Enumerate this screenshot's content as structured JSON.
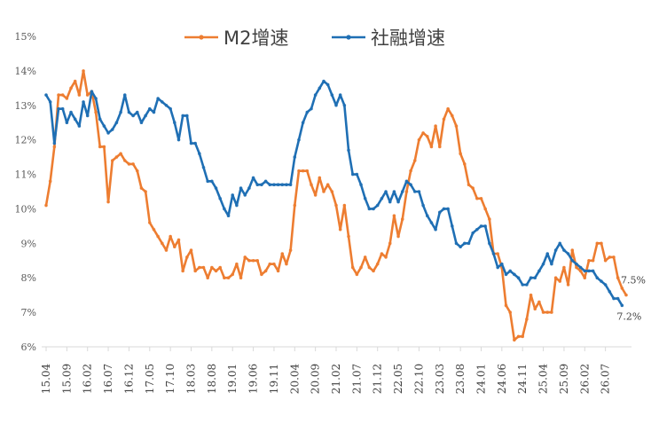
{
  "chart_data": {
    "type": "line",
    "title": "",
    "xlabel": "",
    "ylabel": "",
    "ylim": [
      6,
      15
    ],
    "y_ticks": [
      "6%",
      "7%",
      "8%",
      "9%",
      "10%",
      "11%",
      "12%",
      "13%",
      "14%",
      "15%"
    ],
    "x_tick_labels": [
      "15.04",
      "15.09",
      "16.02",
      "16.07",
      "16.12",
      "17.05",
      "17.10",
      "18.03",
      "18.08",
      "19.01",
      "19.06",
      "19.11",
      "20.04",
      "20.09",
      "21.02",
      "21.07",
      "21.12",
      "22.05",
      "22.10",
      "23.03",
      "23.08",
      "24.01",
      "24.06",
      "24.11",
      "25.04",
      "25.09",
      "26.02",
      "26.07"
    ],
    "x_start": "2015-04",
    "grid": false,
    "legend_position": "top",
    "series": [
      {
        "name": "M2增速",
        "color": "#ED7D31",
        "end_label": "7.5%",
        "values": [
          10.1,
          10.8,
          11.8,
          13.3,
          13.3,
          13.2,
          13.5,
          13.7,
          13.3,
          14.0,
          13.3,
          13.4,
          12.8,
          11.8,
          11.8,
          10.2,
          11.4,
          11.5,
          11.6,
          11.4,
          11.3,
          11.3,
          11.1,
          10.6,
          10.5,
          9.6,
          9.4,
          9.2,
          9.0,
          8.8,
          9.2,
          8.9,
          9.1,
          8.2,
          8.6,
          8.8,
          8.2,
          8.3,
          8.3,
          8.0,
          8.3,
          8.2,
          8.3,
          8.0,
          8.0,
          8.1,
          8.4,
          8.0,
          8.6,
          8.5,
          8.5,
          8.5,
          8.1,
          8.2,
          8.4,
          8.4,
          8.2,
          8.7,
          8.4,
          8.8,
          10.1,
          11.1,
          11.1,
          11.1,
          10.7,
          10.4,
          10.9,
          10.5,
          10.7,
          10.5,
          10.1,
          9.4,
          10.1,
          9.2,
          8.3,
          8.1,
          8.3,
          8.6,
          8.3,
          8.2,
          8.4,
          8.7,
          8.6,
          9.0,
          9.8,
          9.2,
          9.7,
          10.5,
          11.1,
          11.4,
          12.0,
          12.2,
          12.1,
          11.8,
          12.4,
          11.8,
          12.6,
          12.9,
          12.7,
          12.4,
          11.6,
          11.3,
          10.7,
          10.6,
          10.3,
          10.3,
          10.0,
          9.7,
          8.7,
          8.7,
          8.3,
          7.2,
          7.0,
          6.2,
          6.3,
          6.3,
          6.8,
          7.5,
          7.1,
          7.3,
          7.0,
          7.0,
          7.0,
          8.0,
          7.9,
          8.3,
          7.8,
          8.8,
          8.3,
          8.2,
          8.0,
          8.5,
          8.5,
          9.0,
          9.0,
          8.5,
          8.6,
          8.6,
          8.0,
          7.7,
          7.5
        ]
      },
      {
        "name": "社融增速",
        "color": "#1F6FB4",
        "end_label": "7.2%",
        "values": [
          13.3,
          13.1,
          11.9,
          12.9,
          12.9,
          12.5,
          12.8,
          12.6,
          12.4,
          13.1,
          12.7,
          13.4,
          13.2,
          12.6,
          12.4,
          12.2,
          12.3,
          12.5,
          12.8,
          13.3,
          12.8,
          12.7,
          12.8,
          12.5,
          12.7,
          12.9,
          12.8,
          13.2,
          13.1,
          13.0,
          12.9,
          12.5,
          12.0,
          12.7,
          12.7,
          11.9,
          11.9,
          11.6,
          11.2,
          10.8,
          10.8,
          10.6,
          10.3,
          10.0,
          9.8,
          10.4,
          10.1,
          10.6,
          10.4,
          10.6,
          10.9,
          10.7,
          10.7,
          10.8,
          10.7,
          10.7,
          10.7,
          10.7,
          10.7,
          10.7,
          11.5,
          12.0,
          12.5,
          12.8,
          12.9,
          13.3,
          13.5,
          13.7,
          13.6,
          13.3,
          13.0,
          13.3,
          13.0,
          11.7,
          11.0,
          11.0,
          10.7,
          10.3,
          10.0,
          10.0,
          10.1,
          10.3,
          10.5,
          10.2,
          10.5,
          10.2,
          10.5,
          10.8,
          10.7,
          10.5,
          10.5,
          10.1,
          9.8,
          9.6,
          9.4,
          9.9,
          10.0,
          10.0,
          9.5,
          9.0,
          8.9,
          9.0,
          9.0,
          9.3,
          9.4,
          9.5,
          9.5,
          9.0,
          8.7,
          8.3,
          8.4,
          8.1,
          8.2,
          8.1,
          8.0,
          7.8,
          7.8,
          8.0,
          8.0,
          8.2,
          8.4,
          8.7,
          8.4,
          8.8,
          9.0,
          8.8,
          8.7,
          8.5,
          8.4,
          8.3,
          8.2,
          8.2,
          8.2,
          8.0,
          7.9,
          7.8,
          7.6,
          7.4,
          7.4,
          7.2
        ]
      }
    ]
  }
}
